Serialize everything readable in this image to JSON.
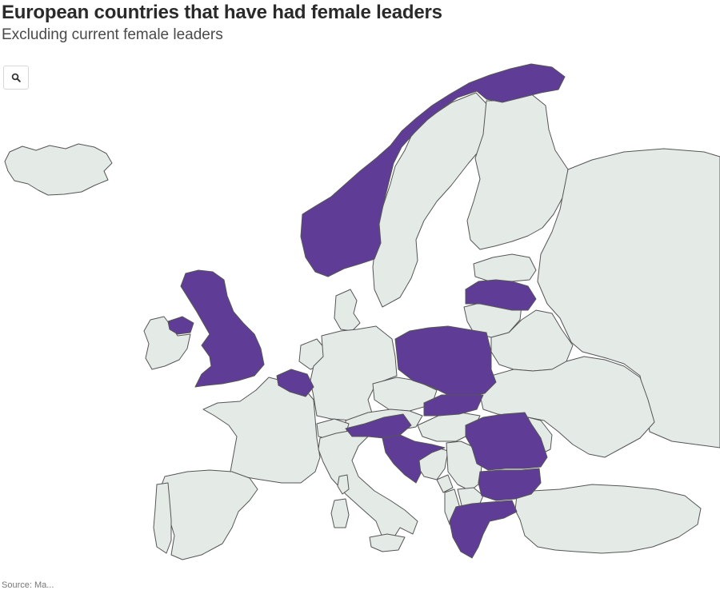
{
  "header": {
    "title": "European countries that have had female leaders",
    "subtitle": "Excluding current female leaders"
  },
  "controls": {
    "zoom_icon": "search-icon"
  },
  "source": {
    "text": "Source: Ma..."
  },
  "colors": {
    "had_female_leader": "#5f3d96",
    "other": "#e4ebe7",
    "border": "#555555"
  },
  "map_data": {
    "type": "choropleth",
    "categories": [
      "had_female_leader",
      "other"
    ],
    "countries": [
      {
        "name": "Norway",
        "category": "had_female_leader"
      },
      {
        "name": "United Kingdom",
        "category": "had_female_leader"
      },
      {
        "name": "Northern Ireland",
        "category": "had_female_leader"
      },
      {
        "name": "Belgium",
        "category": "had_female_leader"
      },
      {
        "name": "Poland",
        "category": "had_female_leader"
      },
      {
        "name": "Slovakia",
        "category": "had_female_leader"
      },
      {
        "name": "Slovenia",
        "category": "had_female_leader"
      },
      {
        "name": "Croatia",
        "category": "had_female_leader"
      },
      {
        "name": "Romania",
        "category": "had_female_leader"
      },
      {
        "name": "Bulgaria",
        "category": "had_female_leader"
      },
      {
        "name": "Greece",
        "category": "had_female_leader"
      },
      {
        "name": "Latvia",
        "category": "had_female_leader"
      },
      {
        "name": "Iceland",
        "category": "other"
      },
      {
        "name": "Ireland",
        "category": "other"
      },
      {
        "name": "Sweden",
        "category": "other"
      },
      {
        "name": "Finland",
        "category": "other"
      },
      {
        "name": "Denmark",
        "category": "other"
      },
      {
        "name": "Estonia",
        "category": "other"
      },
      {
        "name": "Lithuania",
        "category": "other"
      },
      {
        "name": "Russia",
        "category": "other"
      },
      {
        "name": "Belarus",
        "category": "other"
      },
      {
        "name": "Ukraine",
        "category": "other"
      },
      {
        "name": "Moldova",
        "category": "other"
      },
      {
        "name": "Netherlands",
        "category": "other"
      },
      {
        "name": "Germany",
        "category": "other"
      },
      {
        "name": "Czechia",
        "category": "other"
      },
      {
        "name": "Austria",
        "category": "other"
      },
      {
        "name": "Hungary",
        "category": "other"
      },
      {
        "name": "Switzerland",
        "category": "other"
      },
      {
        "name": "France",
        "category": "other"
      },
      {
        "name": "Spain",
        "category": "other"
      },
      {
        "name": "Portugal",
        "category": "other"
      },
      {
        "name": "Italy",
        "category": "other"
      },
      {
        "name": "Sardinia",
        "category": "other"
      },
      {
        "name": "Corsica",
        "category": "other"
      },
      {
        "name": "Sicily",
        "category": "other"
      },
      {
        "name": "Bosnia and Herzegovina",
        "category": "other"
      },
      {
        "name": "Serbia",
        "category": "other"
      },
      {
        "name": "Montenegro",
        "category": "other"
      },
      {
        "name": "Albania",
        "category": "other"
      },
      {
        "name": "North Macedonia",
        "category": "other"
      },
      {
        "name": "Turkey",
        "category": "other"
      }
    ]
  }
}
